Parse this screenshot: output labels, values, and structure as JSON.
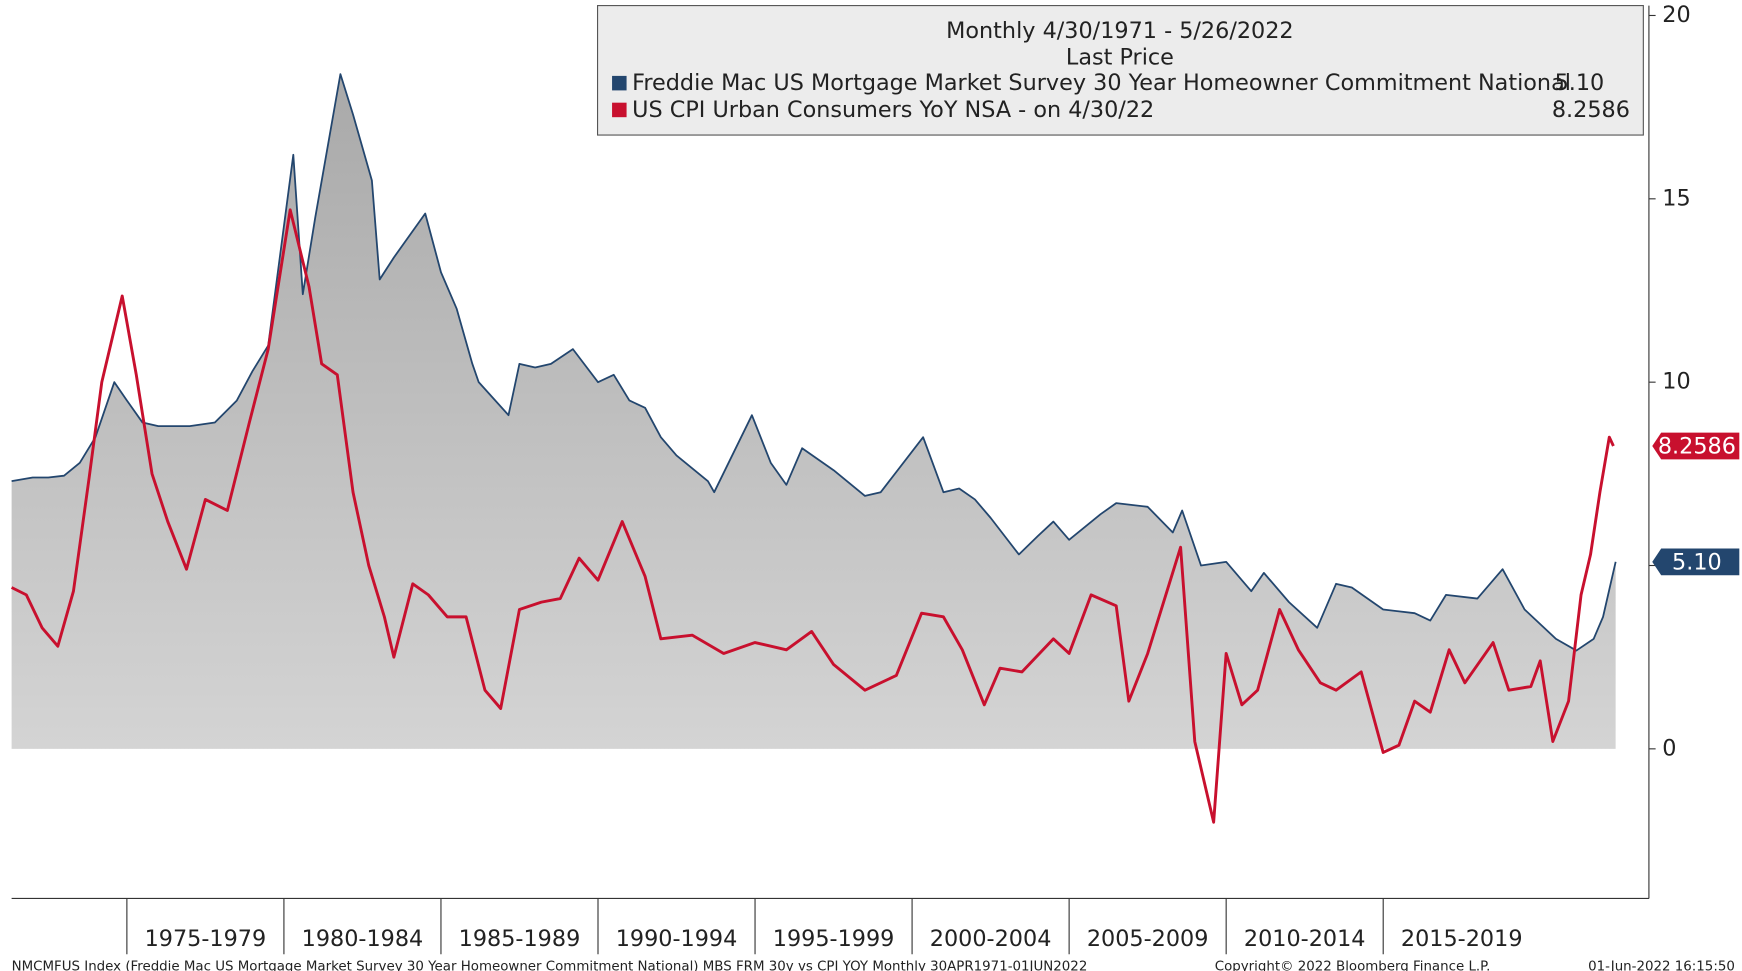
{
  "chart_data": {
    "type": "line",
    "legend_title": "Monthly 4/30/1971 - 5/26/2022",
    "legend_subtitle": "Last Price",
    "footer_left": "NMCMFUS Index (Freddie Mac US Mortgage Market Survey 30 Year Homeowner Commitment National) MBS FRM 30y vs CPI YOY  Monthly 30APR1971-01JUN2022",
    "footer_center": "Copyright© 2022 Bloomberg Finance L.P.",
    "footer_right": "01-Jun-2022 16:15:50",
    "xlim": [
      1971.33,
      2023.46
    ],
    "ylim": [
      -4.08,
      20.27
    ],
    "yticks": [
      0,
      5,
      10,
      15,
      20
    ],
    "xticks": [
      {
        "value": 1975,
        "label": "1975-1979"
      },
      {
        "value": 1980,
        "label": "1980-1984"
      },
      {
        "value": 1985,
        "label": "1985-1989"
      },
      {
        "value": 1990,
        "label": "1990-1994"
      },
      {
        "value": 1995,
        "label": "1995-1999"
      },
      {
        "value": 2000,
        "label": "2000-2004"
      },
      {
        "value": 2005,
        "label": "2005-2009"
      },
      {
        "value": 2010,
        "label": "2010-2014"
      },
      {
        "value": 2015,
        "label": "2015-2019"
      }
    ],
    "series": [
      {
        "name": "Freddie Mac US Mortgage Market Survey 30 Year Homeowner Commitment National",
        "color": "#23466e",
        "last_label": "5.10",
        "area": true,
        "x": [
          1971.33,
          1972.0,
          1972.5,
          1973.0,
          1973.5,
          1974.0,
          1974.6,
          1975.0,
          1975.5,
          1976.0,
          1977.0,
          1977.8,
          1978.5,
          1979.0,
          1979.5,
          1980.3,
          1980.6,
          1981.0,
          1981.8,
          1982.2,
          1982.8,
          1983.05,
          1983.5,
          1984.5,
          1985.0,
          1985.5,
          1986.0,
          1986.2,
          1987.15,
          1987.5,
          1988.0,
          1988.5,
          1989.2,
          1990.0,
          1990.5,
          1991.0,
          1991.5,
          1992.0,
          1992.5,
          1993.5,
          1993.7,
          1994.9,
          1995.5,
          1996.0,
          1996.5,
          1997.5,
          1998.5,
          1999.0,
          2000.35,
          2001.0,
          2001.5,
          2002.0,
          2002.5,
          2003.4,
          2004.0,
          2004.5,
          2005.0,
          2006.0,
          2006.5,
          2007.5,
          2008.3,
          2008.6,
          2009.2,
          2010.0,
          2010.8,
          2011.2,
          2012.0,
          2012.9,
          2013.5,
          2014.0,
          2015.0,
          2016.0,
          2016.5,
          2017.0,
          2018.0,
          2018.8,
          2019.5,
          2020.5,
          2021.15,
          2021.7,
          2022.0,
          2022.4
        ],
        "values": [
          7.3,
          7.4,
          7.4,
          7.45,
          7.8,
          8.5,
          10.0,
          9.5,
          8.9,
          8.8,
          8.8,
          8.9,
          9.5,
          10.3,
          11.0,
          16.2,
          12.4,
          14.5,
          18.4,
          17.3,
          15.5,
          12.8,
          13.4,
          14.6,
          13.0,
          12.0,
          10.5,
          10.0,
          9.1,
          10.5,
          10.4,
          10.5,
          10.9,
          10.0,
          10.2,
          9.5,
          9.3,
          8.5,
          8.0,
          7.3,
          7.0,
          9.1,
          7.8,
          7.2,
          8.2,
          7.6,
          6.9,
          7.0,
          8.5,
          7.0,
          7.1,
          6.8,
          6.3,
          5.3,
          5.8,
          6.2,
          5.7,
          6.4,
          6.7,
          6.6,
          5.9,
          6.5,
          5.0,
          5.1,
          4.3,
          4.8,
          4.0,
          3.3,
          4.5,
          4.4,
          3.8,
          3.7,
          3.5,
          4.2,
          4.1,
          4.9,
          3.8,
          3.0,
          2.68,
          3.0,
          3.6,
          5.1
        ]
      },
      {
        "name": "US CPI Urban Consumers YoY NSA -  on 4/30/22",
        "color": "#c8102e",
        "last_label": "8.2586",
        "area": false,
        "x": [
          1971.33,
          1971.8,
          1972.3,
          1972.8,
          1973.3,
          1973.8,
          1974.2,
          1974.85,
          1975.3,
          1975.8,
          1976.3,
          1976.9,
          1977.5,
          1978.2,
          1978.9,
          1979.5,
          1980.2,
          1980.8,
          1981.2,
          1981.7,
          1982.2,
          1982.7,
          1983.2,
          1983.5,
          1984.1,
          1984.6,
          1985.2,
          1985.8,
          1986.4,
          1986.9,
          1987.5,
          1988.2,
          1988.8,
          1989.4,
          1990.0,
          1990.77,
          1991.5,
          1992.0,
          1993.0,
          1994.0,
          1995.0,
          1996.0,
          1996.8,
          1997.5,
          1998.5,
          1999.5,
          2000.3,
          2001.0,
          2001.6,
          2002.3,
          2002.8,
          2003.5,
          2004.5,
          2005.0,
          2005.7,
          2006.5,
          2006.9,
          2007.5,
          2008.55,
          2009.0,
          2009.6,
          2010.0,
          2010.5,
          2011.0,
          2011.7,
          2012.3,
          2013.0,
          2013.5,
          2014.3,
          2015.0,
          2015.5,
          2016.0,
          2016.5,
          2017.1,
          2017.6,
          2018.5,
          2019.0,
          2019.7,
          2020.0,
          2020.4,
          2020.9,
          2021.3,
          2021.6,
          2021.9,
          2022.2,
          2022.33
        ],
        "values": [
          4.4,
          4.2,
          3.3,
          2.8,
          4.3,
          7.4,
          10.0,
          12.35,
          10.2,
          7.5,
          6.2,
          4.9,
          6.8,
          6.5,
          8.9,
          10.9,
          14.7,
          12.6,
          10.5,
          10.2,
          7.0,
          5.0,
          3.6,
          2.5,
          4.5,
          4.2,
          3.6,
          3.6,
          1.6,
          1.1,
          3.8,
          4.0,
          4.1,
          5.2,
          4.6,
          6.2,
          4.7,
          3.0,
          3.1,
          2.6,
          2.9,
          2.7,
          3.2,
          2.3,
          1.6,
          2.0,
          3.7,
          3.6,
          2.7,
          1.2,
          2.2,
          2.1,
          3.0,
          2.6,
          4.2,
          3.9,
          1.3,
          2.6,
          5.5,
          0.2,
          -2.0,
          2.6,
          1.2,
          1.6,
          3.8,
          2.7,
          1.8,
          1.6,
          2.1,
          -0.1,
          0.1,
          1.3,
          1.0,
          2.7,
          1.8,
          2.9,
          1.6,
          1.7,
          2.4,
          0.2,
          1.3,
          4.2,
          5.3,
          7.0,
          8.5,
          8.2586
        ]
      }
    ]
  }
}
